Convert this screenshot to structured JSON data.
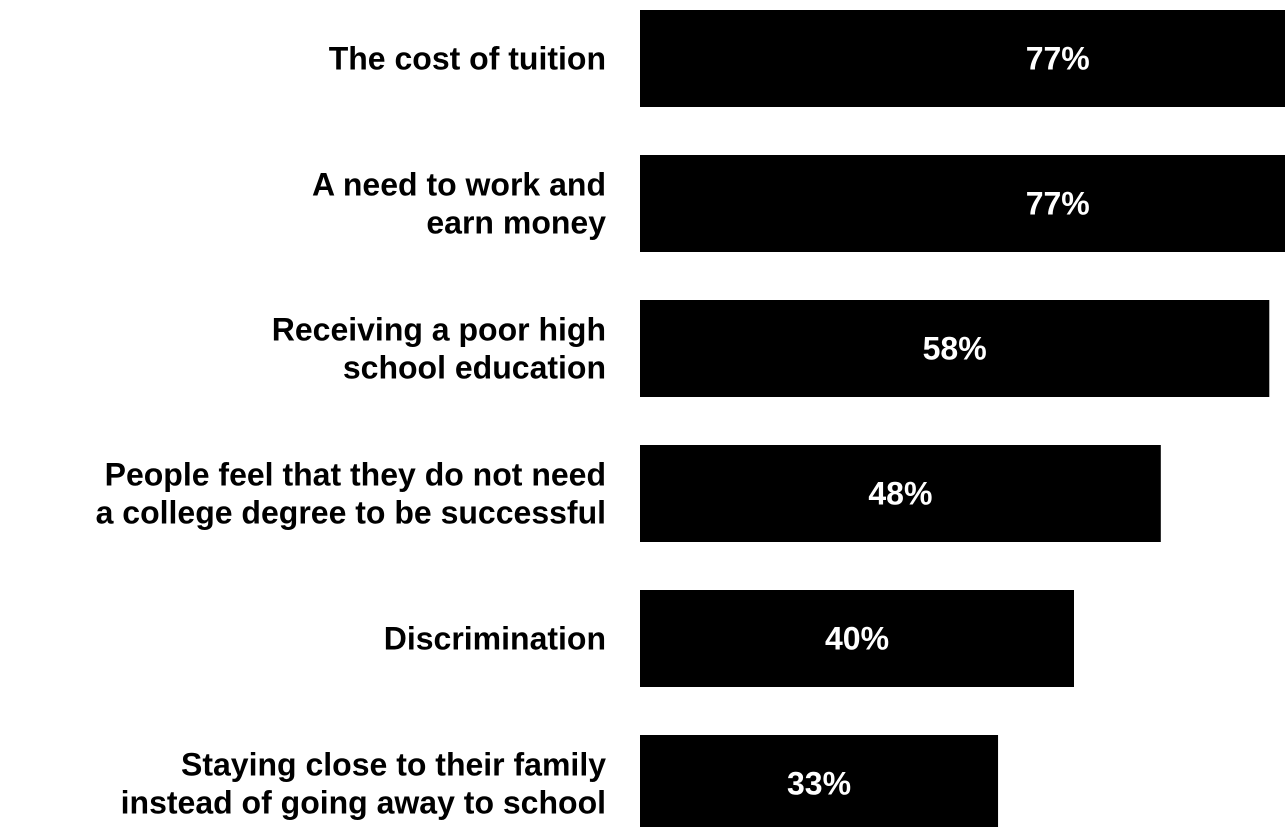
{
  "chart_data": {
    "type": "bar",
    "orientation": "horizontal",
    "categories": [
      [
        "The cost of tuition"
      ],
      [
        "A need to work and",
        "earn money"
      ],
      [
        "Receiving a poor high",
        "school education"
      ],
      [
        "People feel that they do not need",
        "a college degree to be successful"
      ],
      [
        "Discrimination"
      ],
      [
        "Staying close to their family",
        "instead of going away to school"
      ]
    ],
    "values": [
      77,
      77,
      58,
      48,
      40,
      33
    ],
    "value_labels": [
      "77%",
      "77%",
      "58%",
      "48%",
      "40%",
      "33%"
    ],
    "title": "",
    "xlabel": "",
    "ylabel": "",
    "grid": false,
    "legend": "none",
    "bar_color": "#000000",
    "value_label_color": "#ffffff",
    "category_label_color": "#000000"
  }
}
